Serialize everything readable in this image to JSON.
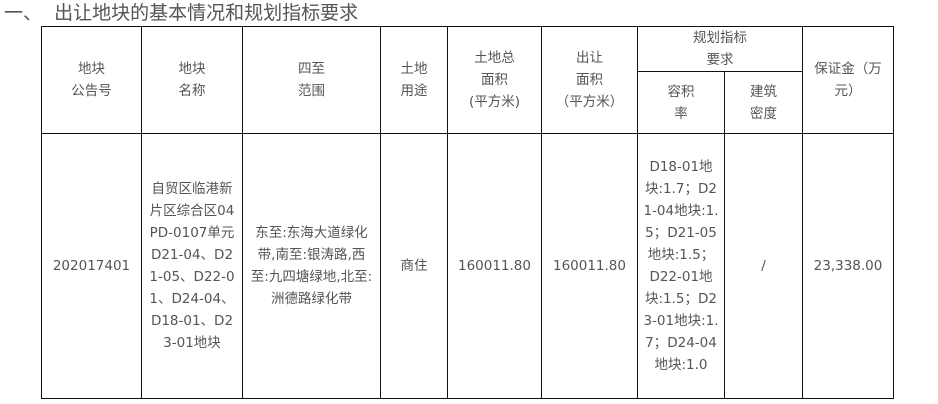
{
  "section_title": "一、  出让地块的基本情况和规划指标要求",
  "headers": {
    "notice_no": "地块\n公告号",
    "name": "地块\n名称",
    "bounds": "四至\n范围",
    "use": "土地\n用途",
    "total_area": "土地总\n面积\n(平方米)",
    "sale_area": "出让\n面积\n（平方米）",
    "planning": "规划指标\n要求",
    "far": "容积\n率",
    "density": "建筑\n密度",
    "deposit": "保证金（万\n元）"
  },
  "row": {
    "notice_no": "202017401",
    "name": "自贸区临港新片区综合区04PD-0107单元D21-04、D21-05、D22-01、D24-04、D18-01、D23-01地块",
    "bounds": "东至:东海大道绿化带,南至:银涛路,西至:九四塘绿地,北至:洲德路绿化带",
    "use": "商住",
    "total_area": "160011.80",
    "sale_area": "160011.80",
    "far": "D18-01地块:1.7；D21-04地块:1.5；D21-05地块:1.5；D22-01地块:1.5；D23-01地块:1.7；D24-04地块:1.0",
    "density": "/",
    "deposit": "23,338.00"
  }
}
